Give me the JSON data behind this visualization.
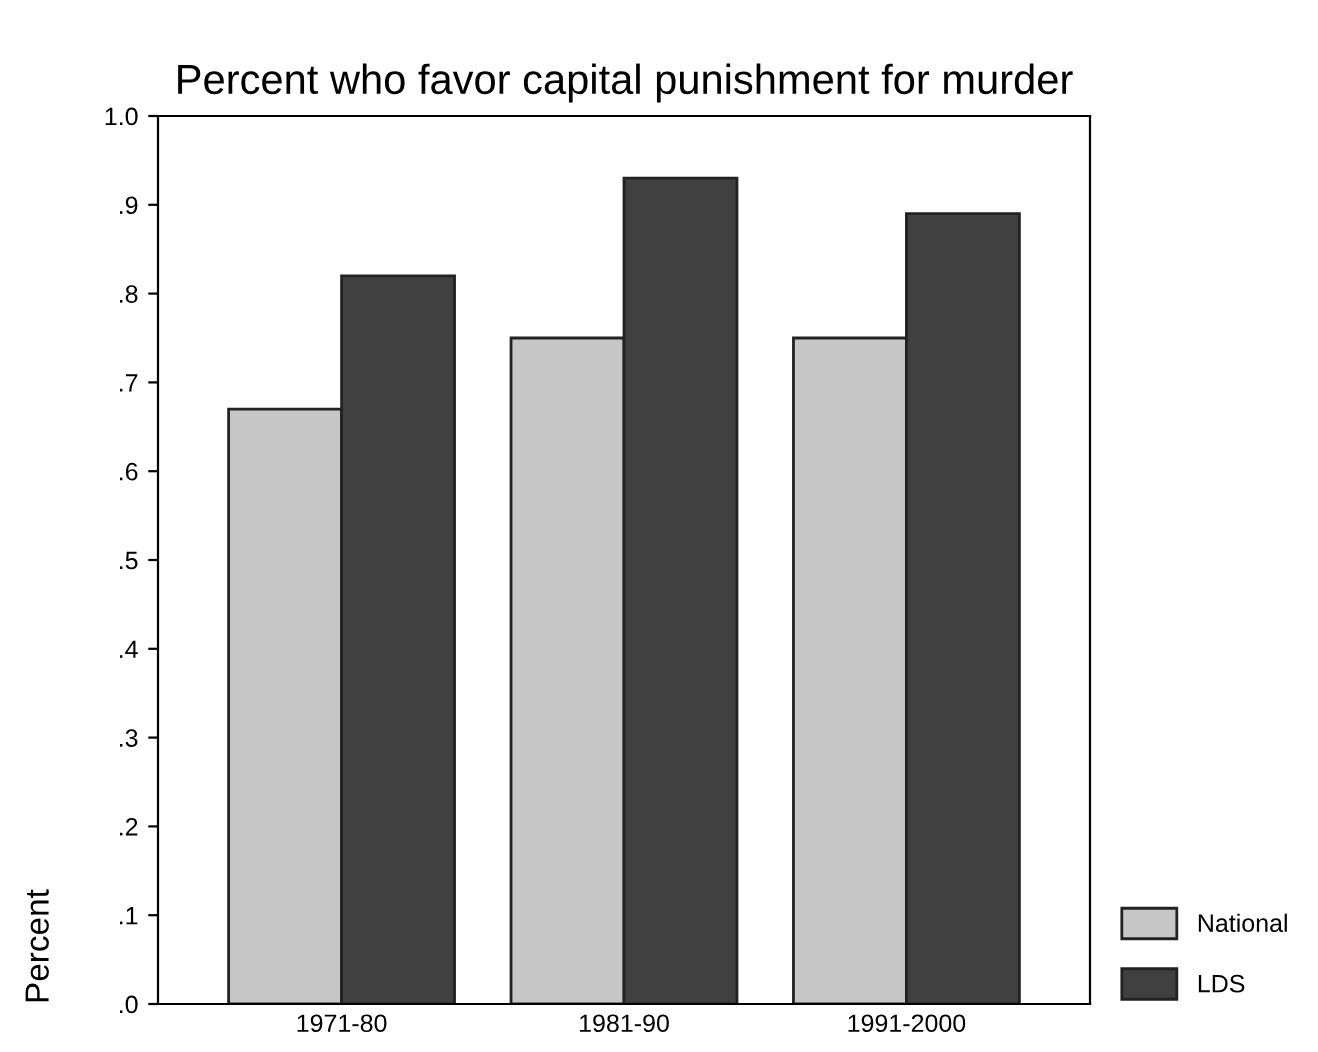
{
  "chart_data": {
    "type": "bar",
    "title": "Percent who favor capital punishment for murder",
    "ylabel": "Percent",
    "categories": [
      "1971-80",
      "1981-90",
      "1991-2000"
    ],
    "series": [
      {
        "name": "National",
        "color": "#c6c6c6",
        "values": [
          0.67,
          0.75,
          0.75
        ]
      },
      {
        "name": "LDS",
        "color": "#404040",
        "values": [
          0.82,
          0.93,
          0.89
        ]
      }
    ],
    "ylim": [
      0,
      1.0
    ],
    "yticks": [
      {
        "value": 0,
        "label": ".0"
      },
      {
        "value": 0.1,
        "label": ".1"
      },
      {
        "value": 0.2,
        "label": ".2"
      },
      {
        "value": 0.3,
        "label": ".3"
      },
      {
        "value": 0.4,
        "label": ".4"
      },
      {
        "value": 0.5,
        "label": ".5"
      },
      {
        "value": 0.6,
        "label": ".6"
      },
      {
        "value": 0.7,
        "label": ".7"
      },
      {
        "value": 0.8,
        "label": ".8"
      },
      {
        "value": 0.9,
        "label": ".9"
      },
      {
        "value": 1.0,
        "label": "1.0"
      }
    ],
    "legend": "bottom right",
    "grid": false
  }
}
